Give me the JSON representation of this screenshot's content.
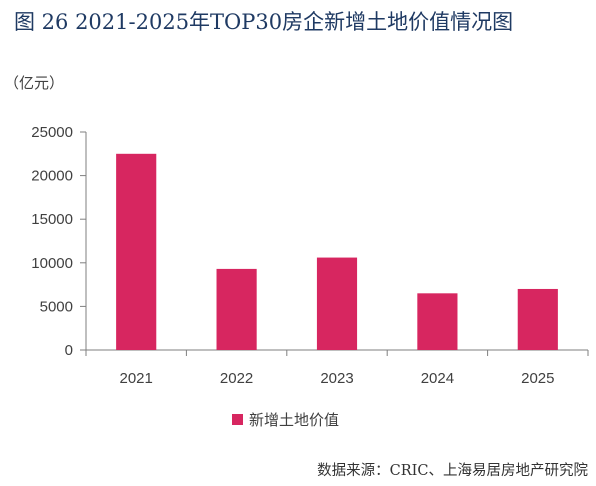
{
  "figure": {
    "title": "图 26  2021-2025年TOP30房企新增土地价值情况图",
    "source": "数据来源：CRIC、上海易居房地产研究院"
  },
  "chart_data": {
    "type": "bar",
    "unit_label": "（亿元）",
    "categories": [
      "2021",
      "2022",
      "2023",
      "2024",
      "2025"
    ],
    "series": [
      {
        "name": "新增土地价值",
        "values": [
          22500,
          9300,
          10600,
          6500,
          7000
        ],
        "color": "#d72660"
      }
    ],
    "ylim": [
      0,
      25000
    ],
    "yticks": [
      0,
      5000,
      10000,
      15000,
      20000,
      25000
    ],
    "grid": false,
    "legend_position": "bottom",
    "axis_color": "#7f7f7f"
  }
}
